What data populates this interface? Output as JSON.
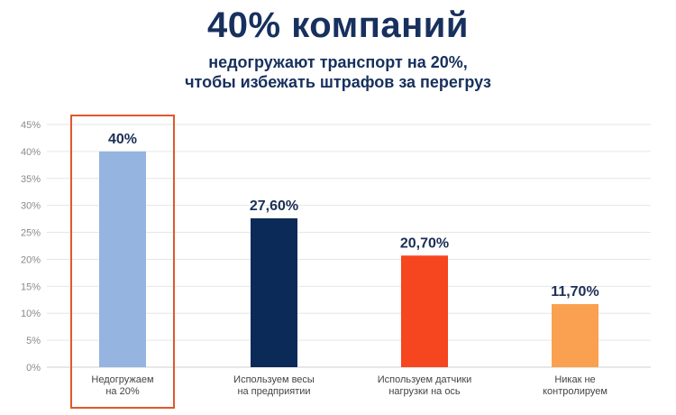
{
  "header": {
    "title": "40% компаний",
    "subtitle_line1": "недогружают транспорт на 20%,",
    "subtitle_line2": "чтобы избежать штрафов за перегруз"
  },
  "colors": {
    "title": "#17305e",
    "highlight_frame": "#e0582b",
    "grid": "#e6e6e6"
  },
  "chart_data": {
    "type": "bar",
    "title": "",
    "xlabel": "",
    "ylabel": "",
    "ylim": [
      0,
      45
    ],
    "y_ticks": [
      "0%",
      "5%",
      "10%",
      "15%",
      "20%",
      "25%",
      "30%",
      "35%",
      "40%",
      "45%"
    ],
    "grid": true,
    "categories": [
      [
        "Недогружаем",
        "на 20%"
      ],
      [
        "Используем весы",
        "на предприятии"
      ],
      [
        "Используем датчики",
        "нагрузки на ось"
      ],
      [
        "Никак не",
        "контролируем"
      ]
    ],
    "values": [
      40,
      27.6,
      20.7,
      11.7
    ],
    "data_labels": [
      "40%",
      "27,60%",
      "20,70%",
      "11,70%"
    ],
    "bar_colors": [
      "#95b4df",
      "#0c2a57",
      "#f5461f",
      "#f9a150"
    ],
    "highlighted_index": 0
  }
}
